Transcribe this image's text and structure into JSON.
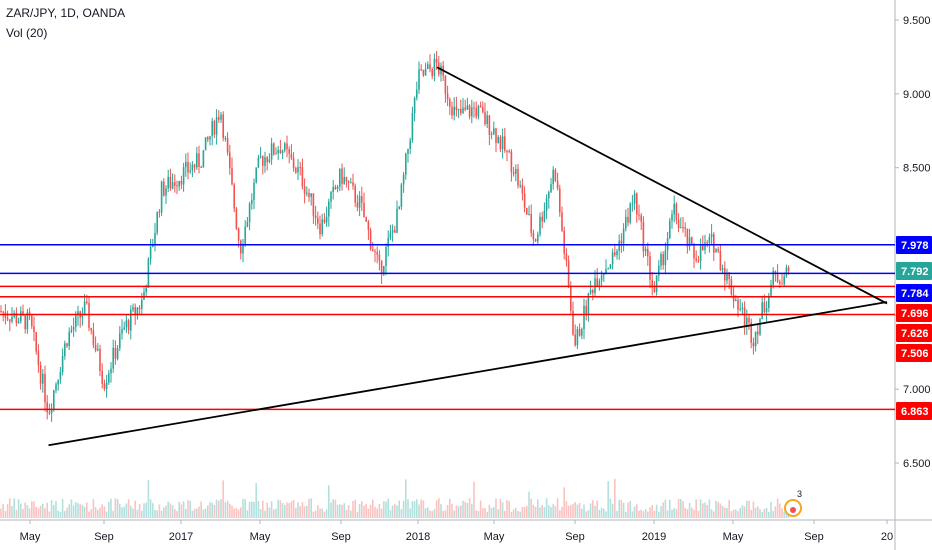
{
  "header": {
    "symbol_title": "ZAR/JPY, 1D, OANDA",
    "volume_label": "Vol (20)"
  },
  "badge": {
    "count": "3"
  },
  "colors": {
    "up": "#26a69a",
    "down": "#ef5350",
    "blue_level": "#0000ff",
    "red_level": "#ff0000",
    "trendline": "#000000",
    "price_tag": "#26a69a"
  },
  "chart_data": {
    "type": "candlestick",
    "title": "ZAR/JPY, 1D, OANDA",
    "x_ticks": [
      "May",
      "Sep",
      "2017",
      "May",
      "Sep",
      "2018",
      "May",
      "Sep",
      "2019",
      "May",
      "Sep",
      "20"
    ],
    "y_ticks": [
      "9.500",
      "9.000",
      "8.500",
      "8.000",
      "7.500",
      "7.000",
      "6.500"
    ],
    "ylim": [
      6.2,
      9.6
    ],
    "current_price": "7.792",
    "horizontal_levels": [
      {
        "value": 7.978,
        "label": "7.978",
        "color": "blue"
      },
      {
        "value": 7.792,
        "label": "7.792",
        "color": "green",
        "is_price": true
      },
      {
        "value": 7.784,
        "label": "7.784",
        "color": "blue"
      },
      {
        "value": 7.696,
        "label": "7.696",
        "color": "red"
      },
      {
        "value": 7.626,
        "label": "7.626",
        "color": "red"
      },
      {
        "value": 7.506,
        "label": "7.506",
        "color": "red"
      },
      {
        "value": 6.863,
        "label": "6.863",
        "color": "red"
      }
    ],
    "trendlines": [
      {
        "name": "descending resistance",
        "from": {
          "x": "2018-02",
          "y": 9.18
        },
        "to": {
          "x": "2020-01",
          "y": 7.58
        }
      },
      {
        "name": "ascending support",
        "from": {
          "x": "2016-06",
          "y": 6.62
        },
        "to": {
          "x": "2020-01",
          "y": 7.59
        }
      }
    ],
    "price_path": [
      {
        "x": "2016-04",
        "y": 7.55
      },
      {
        "x": "2016-05",
        "y": 7.45
      },
      {
        "x": "2016-06",
        "y": 6.85
      },
      {
        "x": "2016-07",
        "y": 7.35
      },
      {
        "x": "2016-08",
        "y": 7.55
      },
      {
        "x": "2016-09",
        "y": 7.05
      },
      {
        "x": "2016-10",
        "y": 7.4
      },
      {
        "x": "2016-11",
        "y": 7.6
      },
      {
        "x": "2016-12",
        "y": 8.35
      },
      {
        "x": "2017-01",
        "y": 8.45
      },
      {
        "x": "2017-02",
        "y": 8.55
      },
      {
        "x": "2017-03",
        "y": 8.9
      },
      {
        "x": "2017-04",
        "y": 7.95
      },
      {
        "x": "2017-05",
        "y": 8.55
      },
      {
        "x": "2017-06",
        "y": 8.65
      },
      {
        "x": "2017-07",
        "y": 8.45
      },
      {
        "x": "2017-08",
        "y": 8.1
      },
      {
        "x": "2017-09",
        "y": 8.45
      },
      {
        "x": "2017-10",
        "y": 8.25
      },
      {
        "x": "2017-11",
        "y": 7.8
      },
      {
        "x": "2017-12",
        "y": 8.2
      },
      {
        "x": "2018-01",
        "y": 9.1
      },
      {
        "x": "2018-02",
        "y": 9.2
      },
      {
        "x": "2018-03",
        "y": 8.85
      },
      {
        "x": "2018-04",
        "y": 8.9
      },
      {
        "x": "2018-05",
        "y": 8.75
      },
      {
        "x": "2018-06",
        "y": 8.5
      },
      {
        "x": "2018-07",
        "y": 8.0
      },
      {
        "x": "2018-08",
        "y": 8.5
      },
      {
        "x": "2018-09",
        "y": 7.3
      },
      {
        "x": "2018-10",
        "y": 7.75
      },
      {
        "x": "2018-11",
        "y": 7.9
      },
      {
        "x": "2018-12",
        "y": 8.3
      },
      {
        "x": "2019-01",
        "y": 7.65
      },
      {
        "x": "2019-02",
        "y": 8.2
      },
      {
        "x": "2019-03",
        "y": 7.9
      },
      {
        "x": "2019-04",
        "y": 8.0
      },
      {
        "x": "2019-05",
        "y": 7.65
      },
      {
        "x": "2019-06",
        "y": 7.35
      },
      {
        "x": "2019-07",
        "y": 7.75
      },
      {
        "x": "2019-07-25",
        "y": 7.79
      }
    ]
  }
}
